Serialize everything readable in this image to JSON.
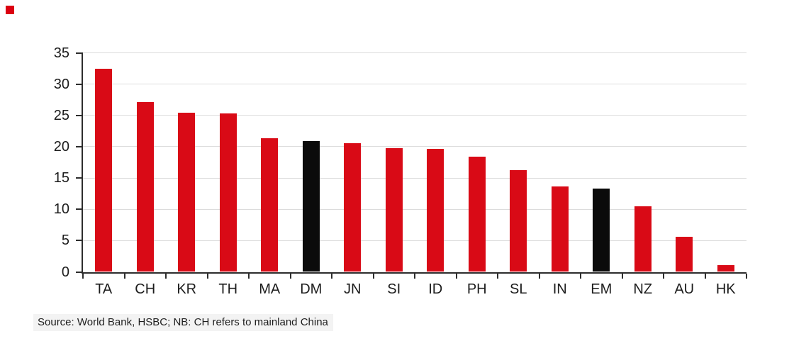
{
  "brand": {
    "square_color": "#db0011"
  },
  "chart_data": {
    "type": "bar",
    "title": "",
    "xlabel": "",
    "ylabel": "",
    "categories": [
      "TA",
      "CH",
      "KR",
      "TH",
      "MA",
      "DM",
      "JN",
      "SI",
      "ID",
      "PH",
      "SL",
      "IN",
      "EM",
      "NZ",
      "AU",
      "HK"
    ],
    "values": [
      32.5,
      27.1,
      25.4,
      25.3,
      21.4,
      20.9,
      20.6,
      19.8,
      19.6,
      18.4,
      16.3,
      13.7,
      13.3,
      10.5,
      5.6,
      1.1
    ],
    "bar_color_keys": [
      "red",
      "red",
      "red",
      "red",
      "red",
      "black",
      "red",
      "red",
      "red",
      "red",
      "red",
      "red",
      "black",
      "red",
      "red",
      "red"
    ],
    "colors": {
      "red": "#d90a16",
      "black": "#0b0b0b"
    },
    "ylim": [
      0,
      35
    ],
    "yticks": [
      0,
      5,
      10,
      15,
      20,
      25,
      30,
      35
    ],
    "grid": true,
    "gridline_color": "#dcdcdc",
    "axis_color": "#2d2d2d",
    "legend_position": "none"
  },
  "footer": {
    "source_note": "Source: World Bank, HSBC; NB: CH refers to mainland China"
  }
}
